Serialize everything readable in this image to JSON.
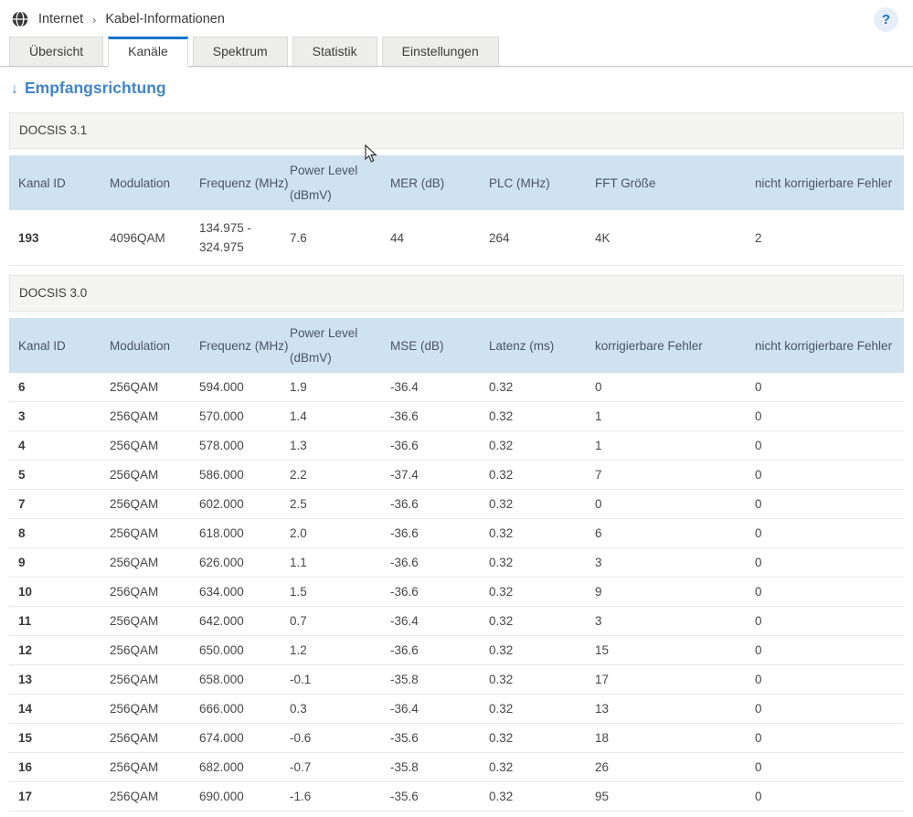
{
  "breadcrumb": {
    "items": [
      "Internet",
      "Kabel-Informationen"
    ],
    "separator": "›"
  },
  "help_button": "?",
  "tabs": [
    {
      "label": "Übersicht",
      "active": false
    },
    {
      "label": "Kanäle",
      "active": true
    },
    {
      "label": "Spektrum",
      "active": false
    },
    {
      "label": "Statistik",
      "active": false
    },
    {
      "label": "Einstellungen",
      "active": false
    }
  ],
  "direction_link": {
    "arrow": "↓",
    "label": "Empfangsrichtung"
  },
  "tables": [
    {
      "title": "DOCSIS 3.1",
      "columns": [
        "Kanal ID",
        "Modulation",
        "Frequenz (MHz)",
        "Power Level (dBmV)",
        "MER (dB)",
        "PLC (MHz)",
        "FFT Größe",
        "nicht korrigierbare Fehler"
      ],
      "rows": [
        [
          "193",
          "4096QAM",
          "134.975 - 324.975",
          "7.6",
          "44",
          "264",
          "4K",
          "2"
        ]
      ]
    },
    {
      "title": "DOCSIS 3.0",
      "columns": [
        "Kanal ID",
        "Modulation",
        "Frequenz (MHz)",
        "Power Level (dBmV)",
        "MSE (dB)",
        "Latenz (ms)",
        "korrigierbare Fehler",
        "nicht korrigierbare Fehler"
      ],
      "rows": [
        [
          "6",
          "256QAM",
          "594.000",
          "1.9",
          "-36.4",
          "0.32",
          "0",
          "0"
        ],
        [
          "3",
          "256QAM",
          "570.000",
          "1.4",
          "-36.6",
          "0.32",
          "1",
          "0"
        ],
        [
          "4",
          "256QAM",
          "578.000",
          "1.3",
          "-36.6",
          "0.32",
          "1",
          "0"
        ],
        [
          "5",
          "256QAM",
          "586.000",
          "2.2",
          "-37.4",
          "0.32",
          "7",
          "0"
        ],
        [
          "7",
          "256QAM",
          "602.000",
          "2.5",
          "-36.6",
          "0.32",
          "0",
          "0"
        ],
        [
          "8",
          "256QAM",
          "618.000",
          "2.0",
          "-36.6",
          "0.32",
          "6",
          "0"
        ],
        [
          "9",
          "256QAM",
          "626.000",
          "1.1",
          "-36.6",
          "0.32",
          "3",
          "0"
        ],
        [
          "10",
          "256QAM",
          "634.000",
          "1.5",
          "-36.6",
          "0.32",
          "9",
          "0"
        ],
        [
          "11",
          "256QAM",
          "642.000",
          "0.7",
          "-36.4",
          "0.32",
          "3",
          "0"
        ],
        [
          "12",
          "256QAM",
          "650.000",
          "1.2",
          "-36.6",
          "0.32",
          "15",
          "0"
        ],
        [
          "13",
          "256QAM",
          "658.000",
          "-0.1",
          "-35.8",
          "0.32",
          "17",
          "0"
        ],
        [
          "14",
          "256QAM",
          "666.000",
          "0.3",
          "-36.4",
          "0.32",
          "13",
          "0"
        ],
        [
          "15",
          "256QAM",
          "674.000",
          "-0.6",
          "-35.6",
          "0.32",
          "18",
          "0"
        ],
        [
          "16",
          "256QAM",
          "682.000",
          "-0.7",
          "-35.8",
          "0.32",
          "26",
          "0"
        ],
        [
          "17",
          "256QAM",
          "690.000",
          "-1.6",
          "-35.6",
          "0.32",
          "95",
          "0"
        ]
      ]
    }
  ],
  "colors": {
    "accent_blue": "#1474cc",
    "link_blue": "#4285c8",
    "table_header_bg": "#cfe2f0",
    "section_header_bg": "#f4f4f2",
    "help_bg": "#e6eff9"
  }
}
